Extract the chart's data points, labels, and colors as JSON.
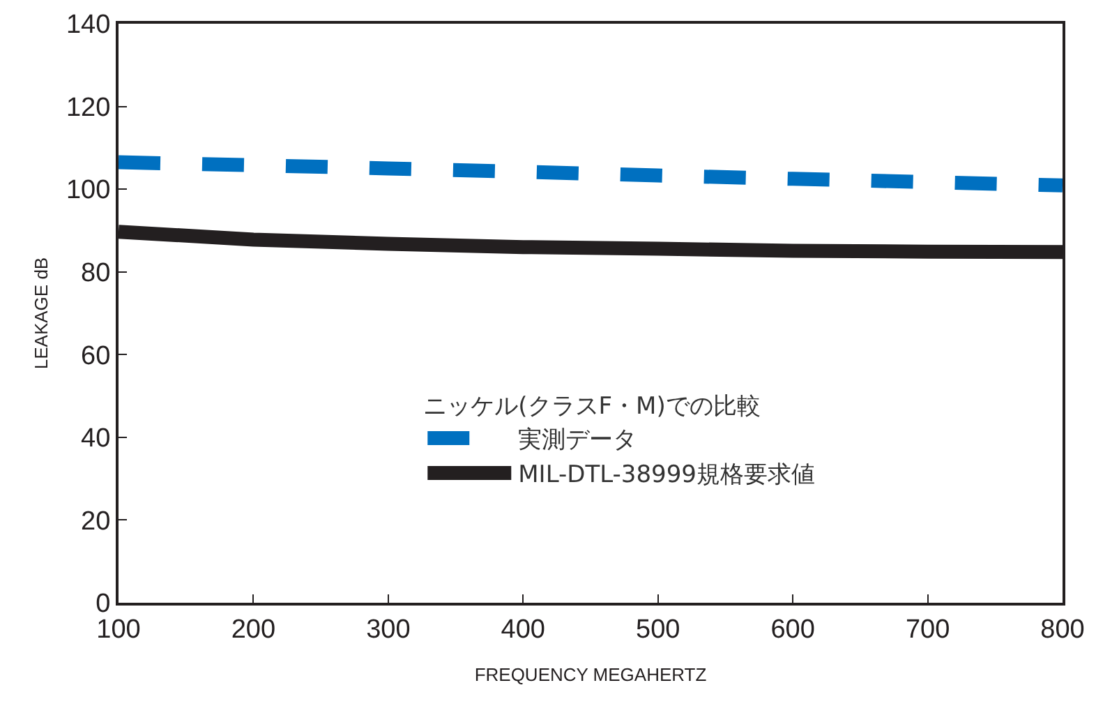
{
  "chart_data": {
    "type": "line",
    "xlabel": "FREQUENCY MEGAHERTZ",
    "ylabel": "LEAKAGE dB",
    "legend_title": "ニッケル(クラスF・M)での比較",
    "x": [
      100,
      200,
      300,
      400,
      500,
      600,
      700,
      800
    ],
    "series": [
      {
        "name": "実測データ",
        "color": "#0070c0",
        "line_style": "dashed",
        "values": [
          106.5,
          105.8,
          105,
          104.2,
          103.3,
          102.5,
          101.7,
          100.9
        ]
      },
      {
        "name": "MIL-DTL-38999規格要求値",
        "color": "#231f20",
        "line_style": "solid",
        "values": [
          89.7,
          87.8,
          86.8,
          86,
          85.6,
          85.1,
          84.9,
          84.8
        ]
      }
    ],
    "xlim": [
      100,
      800
    ],
    "xticks": [
      100,
      200,
      300,
      400,
      500,
      600,
      700,
      800
    ],
    "ylim": [
      0,
      140
    ],
    "yticks": [
      0,
      20,
      40,
      60,
      80,
      100,
      120,
      140
    ],
    "grid": false,
    "legend": "bottom right",
    "marker": "none"
  }
}
